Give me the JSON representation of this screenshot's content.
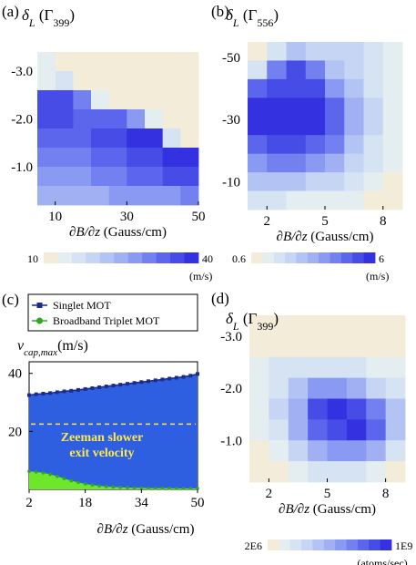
{
  "colors": {
    "scale": [
      "#f2ecd8",
      "#e4edf0",
      "#d5e3f3",
      "#c5d5f3",
      "#b3c3f3",
      "#a0b0f3",
      "#8a99f1",
      "#7380ef",
      "#5c66ec",
      "#474ce7",
      "#3432e0"
    ],
    "singlet_fill": "#2e5fe0",
    "singlet_line": "#1d2c8c",
    "triplet_fill": "#6ee62a",
    "triplet_marker": "#2da820",
    "zeeman_line": "#f6e65a",
    "zeeman_text": "#ffe94a"
  },
  "chart_data": [
    {
      "panel": "(a)",
      "type": "heatmap",
      "ylabel_sym": "δ",
      "ylabel_sub": "L",
      "ylabel_unit": "(Γ",
      "ylabel_unit_sub": "399",
      "ylabel_close": ")",
      "xlabel": "∂B/∂z (Gauss/cm)",
      "xlim": [
        5,
        50
      ],
      "ylim": [
        -0.2,
        -3.4
      ],
      "xticks": [
        "10",
        "30",
        "50"
      ],
      "xtick_values": [
        10,
        30,
        50
      ],
      "yticks": [
        "-3.0",
        "-2.0",
        "-1.0"
      ],
      "ytick_values": [
        -3.0,
        -2.0,
        -1.0
      ],
      "x_edges": [
        5,
        10,
        15,
        20,
        25,
        30,
        35,
        40,
        45,
        50
      ],
      "y_edges": [
        -3.4,
        -3.0,
        -2.6,
        -2.2,
        -1.8,
        -1.4,
        -1.0,
        -0.6,
        -0.2
      ],
      "levels": [
        [
          1,
          0,
          0,
          0,
          0,
          0,
          0,
          0,
          0
        ],
        [
          1,
          2,
          0,
          0,
          0,
          0,
          0,
          0,
          0
        ],
        [
          9,
          9,
          7,
          1,
          0,
          0,
          0,
          0,
          0
        ],
        [
          9,
          9,
          8,
          8,
          8,
          6,
          1,
          0,
          0
        ],
        [
          8,
          8,
          8,
          9,
          9,
          10,
          10,
          2,
          0
        ],
        [
          7,
          7,
          7,
          8,
          8,
          9,
          9,
          10,
          10
        ],
        [
          6,
          6,
          6,
          7,
          7,
          8,
          8,
          9,
          9
        ],
        [
          5,
          5,
          5,
          5,
          6,
          6,
          6,
          6,
          7
        ]
      ],
      "colorbar": {
        "ticks": [
          "10",
          "40"
        ],
        "unit": "(m/s)"
      }
    },
    {
      "panel": "(b)",
      "type": "heatmap",
      "ylabel_sym": "δ",
      "ylabel_sub": "L",
      "ylabel_unit": "(Γ",
      "ylabel_unit_sub": "556",
      "ylabel_close": ")",
      "xlabel": "∂B/∂z (Gauss/cm)",
      "xlim": [
        1,
        9
      ],
      "ylim": [
        -1,
        -55
      ],
      "xticks": [
        "2",
        "5",
        "8"
      ],
      "xtick_values": [
        2,
        5,
        8
      ],
      "yticks": [
        "-50",
        "-30",
        "-10"
      ],
      "ytick_values": [
        -50,
        -30,
        -10
      ],
      "x_edges": [
        1,
        2,
        3,
        4,
        5,
        6,
        7,
        8,
        9
      ],
      "y_edges": [
        -55,
        -49,
        -43,
        -37,
        -31,
        -25,
        -19,
        -13,
        -7,
        -1
      ],
      "levels": [
        [
          0,
          2,
          4,
          3,
          3,
          3,
          2,
          1
        ],
        [
          2,
          7,
          9,
          7,
          4,
          3,
          2,
          1
        ],
        [
          8,
          9,
          9,
          9,
          6,
          4,
          2,
          1
        ],
        [
          10,
          10,
          10,
          10,
          8,
          5,
          3,
          1
        ],
        [
          10,
          10,
          10,
          10,
          8,
          5,
          3,
          1
        ],
        [
          8,
          9,
          9,
          8,
          7,
          4,
          2,
          1
        ],
        [
          6,
          7,
          7,
          6,
          5,
          3,
          2,
          1
        ],
        [
          4,
          4,
          4,
          3,
          3,
          2,
          1,
          0
        ],
        [
          2,
          2,
          1,
          1,
          1,
          1,
          0,
          0
        ]
      ],
      "colorbar": {
        "ticks": [
          "0.6",
          "6"
        ],
        "unit": "(m/s)"
      }
    },
    {
      "panel": "(c)",
      "type": "area",
      "ylabel_sym": "v",
      "ylabel_sub": "cap,max",
      "ylabel_unit": "(m/s)",
      "xlabel": "∂B/∂z (Gauss/cm)",
      "xlim": [
        2,
        50
      ],
      "ylim": [
        0,
        44
      ],
      "xticks": [
        "2",
        "18",
        "34",
        "50"
      ],
      "xtick_values": [
        2,
        18,
        34,
        50
      ],
      "yticks": [
        "40",
        "20"
      ],
      "ytick_values": [
        40,
        20
      ],
      "legend_position": "top-left, outside",
      "x": [
        2,
        4,
        6,
        8,
        10,
        12,
        14,
        16,
        18,
        20,
        22,
        24,
        26,
        28,
        30,
        32,
        34,
        36,
        38,
        40,
        42,
        44,
        46,
        48,
        50
      ],
      "series": [
        {
          "name": "Singlet MOT",
          "values": [
            32.5,
            32.8,
            33.0,
            33.2,
            33.5,
            33.8,
            34.0,
            34.3,
            34.6,
            34.9,
            35.2,
            35.5,
            35.8,
            36.1,
            36.4,
            36.7,
            37.0,
            37.3,
            37.6,
            37.9,
            38.2,
            38.5,
            38.8,
            39.2,
            39.8
          ]
        },
        {
          "name": "Broadband Triplet MOT",
          "values": [
            6.2,
            6.0,
            5.7,
            5.2,
            4.5,
            3.7,
            3.0,
            2.4,
            1.9,
            1.5,
            1.2,
            1.0,
            0.8,
            0.7,
            0.6,
            0.5,
            0.5,
            0.4,
            0.4,
            0.4,
            0.4,
            0.3,
            0.3,
            0.3,
            0.3
          ]
        }
      ],
      "annotation": {
        "line1": "Zeeman slower",
        "line2": "exit velocity",
        "y": 22.5
      }
    },
    {
      "panel": "(d)",
      "type": "heatmap",
      "ylabel_sym": "δ",
      "ylabel_sub": "L",
      "ylabel_unit": "(Γ",
      "ylabel_unit_sub": "399",
      "ylabel_close": ")",
      "xlabel": "∂B/∂z (Gauss/cm)",
      "xlim": [
        1,
        9
      ],
      "ylim": [
        -0.2,
        -3.4
      ],
      "xticks": [
        "2",
        "5",
        "8"
      ],
      "xtick_values": [
        2,
        5,
        8
      ],
      "yticks": [
        "-3.0",
        "-2.0",
        "-1.0"
      ],
      "ytick_values": [
        -3.0,
        -2.0,
        -1.0
      ],
      "x_edges": [
        1,
        2,
        3,
        4,
        5,
        6,
        7,
        8,
        9
      ],
      "y_edges": [
        -3.4,
        -3.0,
        -2.6,
        -2.2,
        -1.8,
        -1.4,
        -1.0,
        -0.6,
        -0.2
      ],
      "levels": [
        [
          0,
          0,
          0,
          0,
          0,
          0,
          0,
          0
        ],
        [
          0,
          0,
          0,
          0,
          0,
          0,
          0,
          0
        ],
        [
          1,
          2,
          2,
          2,
          2,
          2,
          1,
          1
        ],
        [
          1,
          2,
          4,
          6,
          6,
          5,
          3,
          2
        ],
        [
          1,
          3,
          5,
          9,
          10,
          9,
          7,
          4
        ],
        [
          1,
          2,
          5,
          8,
          9,
          10,
          8,
          4
        ],
        [
          0,
          1,
          3,
          5,
          6,
          6,
          5,
          2
        ],
        [
          0,
          0,
          1,
          2,
          2,
          2,
          1,
          0
        ]
      ],
      "colorbar": {
        "ticks": [
          "2E6",
          "1E9"
        ],
        "unit": "(atoms/sec)"
      }
    }
  ]
}
